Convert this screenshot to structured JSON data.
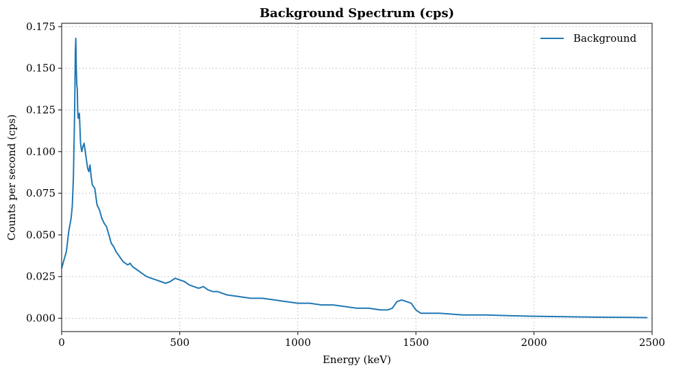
{
  "chart_data": {
    "type": "line",
    "title": "Background Spectrum (cps)",
    "xlabel": "Energy (keV)",
    "ylabel": "Counts per second (cps)",
    "xlim": [
      0,
      2500
    ],
    "ylim": [
      -0.008,
      0.177
    ],
    "xticks": [
      0,
      500,
      1000,
      1500,
      2000,
      2500
    ],
    "xtick_labels": [
      "0",
      "500",
      "1000",
      "1500",
      "2000",
      "2500"
    ],
    "yticks": [
      0.0,
      0.025,
      0.05,
      0.075,
      0.1,
      0.125,
      0.15,
      0.175
    ],
    "ytick_labels": [
      "0.000",
      "0.025",
      "0.050",
      "0.075",
      "0.100",
      "0.125",
      "0.150",
      "0.175"
    ],
    "grid": true,
    "legend_position": "top-right",
    "series": [
      {
        "name": "Background",
        "color": "#1f77b4",
        "x": [
          0,
          10,
          20,
          30,
          40,
          45,
          50,
          55,
          58,
          60,
          62,
          64,
          66,
          68,
          70,
          75,
          80,
          85,
          90,
          95,
          100,
          105,
          110,
          115,
          120,
          125,
          130,
          140,
          150,
          160,
          170,
          180,
          190,
          200,
          210,
          220,
          230,
          240,
          250,
          260,
          270,
          280,
          290,
          300,
          320,
          340,
          360,
          380,
          400,
          420,
          440,
          460,
          480,
          500,
          520,
          540,
          560,
          580,
          600,
          620,
          640,
          660,
          680,
          700,
          750,
          800,
          850,
          900,
          950,
          1000,
          1050,
          1100,
          1150,
          1200,
          1250,
          1300,
          1350,
          1380,
          1400,
          1420,
          1440,
          1460,
          1480,
          1500,
          1520,
          1550,
          1600,
          1700,
          1800,
          1900,
          2000,
          2100,
          2200,
          2300,
          2400,
          2480
        ],
        "y": [
          0.03,
          0.035,
          0.04,
          0.052,
          0.06,
          0.067,
          0.085,
          0.125,
          0.16,
          0.168,
          0.15,
          0.14,
          0.138,
          0.125,
          0.12,
          0.123,
          0.105,
          0.1,
          0.103,
          0.105,
          0.1,
          0.095,
          0.09,
          0.088,
          0.092,
          0.085,
          0.08,
          0.078,
          0.068,
          0.065,
          0.06,
          0.057,
          0.055,
          0.05,
          0.045,
          0.043,
          0.04,
          0.038,
          0.036,
          0.034,
          0.033,
          0.032,
          0.033,
          0.031,
          0.029,
          0.027,
          0.025,
          0.024,
          0.023,
          0.022,
          0.021,
          0.022,
          0.024,
          0.023,
          0.022,
          0.02,
          0.019,
          0.018,
          0.019,
          0.017,
          0.016,
          0.016,
          0.015,
          0.014,
          0.013,
          0.012,
          0.012,
          0.011,
          0.01,
          0.009,
          0.009,
          0.008,
          0.008,
          0.007,
          0.006,
          0.006,
          0.005,
          0.005,
          0.006,
          0.01,
          0.011,
          0.01,
          0.009,
          0.005,
          0.003,
          0.003,
          0.003,
          0.002,
          0.002,
          0.0015,
          0.0012,
          0.001,
          0.0008,
          0.0006,
          0.0005,
          0.0004
        ]
      }
    ]
  }
}
